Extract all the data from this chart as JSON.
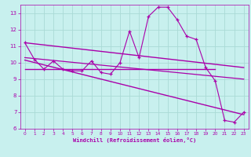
{
  "xlabel": "Windchill (Refroidissement éolien,°C)",
  "background_color": "#c8f0ee",
  "grid_color": "#aadad6",
  "line_color": "#aa00aa",
  "xlim": [
    -0.5,
    23.5
  ],
  "ylim": [
    6,
    13.5
  ],
  "xticks": [
    0,
    1,
    2,
    3,
    4,
    5,
    6,
    7,
    8,
    9,
    10,
    11,
    12,
    13,
    14,
    15,
    16,
    17,
    18,
    19,
    20,
    21,
    22,
    23
  ],
  "yticks": [
    6,
    7,
    8,
    9,
    10,
    11,
    12,
    13
  ],
  "line1_x": [
    0,
    1,
    2,
    3,
    4,
    5,
    6,
    7,
    8,
    9,
    10,
    11,
    12,
    13,
    14,
    15,
    16,
    17,
    18,
    19,
    20,
    21,
    22,
    23
  ],
  "line1_y": [
    11.2,
    10.2,
    9.6,
    10.1,
    9.6,
    9.5,
    9.5,
    10.1,
    9.4,
    9.3,
    10.0,
    11.9,
    10.3,
    12.8,
    13.35,
    13.35,
    12.6,
    11.6,
    11.4,
    9.7,
    8.9,
    6.5,
    6.4,
    7.0
  ],
  "line2_x": [
    0,
    23
  ],
  "line2_y": [
    11.2,
    9.7
  ],
  "line3_x": [
    0,
    23
  ],
  "line3_y": [
    10.3,
    9.0
  ],
  "line4_x": [
    0,
    20
  ],
  "line4_y": [
    9.6,
    9.6
  ],
  "line5_x": [
    0,
    23
  ],
  "line5_y": [
    10.15,
    6.85
  ]
}
